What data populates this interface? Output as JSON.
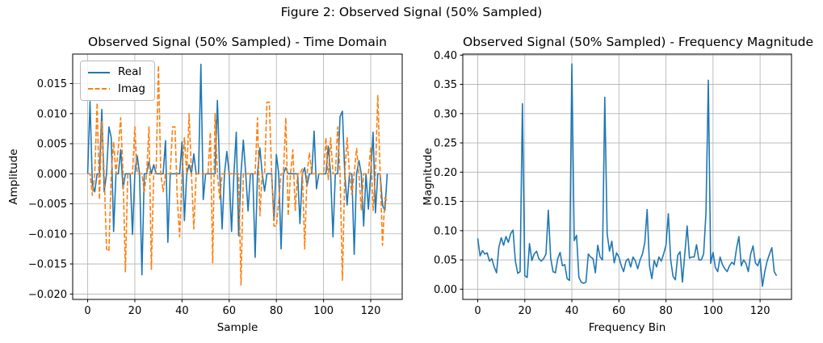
{
  "figure": {
    "suptitle": "Figure 2: Observed Signal (50% Sampled)",
    "background": "#ffffff"
  },
  "colors": {
    "real": "#1f77b4",
    "imag": "#ff7f0e",
    "magnitude": "#1f77b4",
    "grid": "#b0b0b0",
    "axes": "#000000",
    "legend_border": "#b9b9b9"
  },
  "chart_data": [
    {
      "type": "line",
      "title": "Observed Signal (50% Sampled) - Time Domain",
      "xlabel": "Sample",
      "ylabel": "Amplitude",
      "grid": true,
      "x_is_index": true,
      "n_points": 128,
      "xlim": [
        -6.35,
        133.35
      ],
      "ylim": [
        -0.0209,
        0.0199
      ],
      "xticks": [
        0,
        20,
        40,
        60,
        80,
        100,
        120
      ],
      "xtick_labels": [
        "0",
        "20",
        "40",
        "60",
        "80",
        "100",
        "120"
      ],
      "yticks": [
        -0.02,
        -0.015,
        -0.01,
        -0.005,
        0.0,
        0.005,
        0.01,
        0.015
      ],
      "ytick_labels": [
        "−0.020",
        "−0.015",
        "−0.010",
        "−0.005",
        "0.000",
        "0.005",
        "0.010",
        "0.015"
      ],
      "legend": {
        "position": "upper left",
        "entries": [
          {
            "label": "Real",
            "color": "#1f77b4",
            "style": "solid"
          },
          {
            "label": "Imag",
            "color": "#ff7f0e",
            "style": "dashed"
          }
        ]
      },
      "series": [
        {
          "name": "Real",
          "color": "#1f77b4",
          "style": "solid",
          "values": [
            0,
            0.012,
            -0.0018,
            -0.003,
            0,
            0,
            0.0107,
            -0.003,
            0,
            0.0078,
            0.006,
            -0.0096,
            0,
            0,
            0.004,
            -0.0025,
            0,
            0,
            0,
            -0.0101,
            0,
            0.003,
            0,
            -0.0168,
            0,
            0,
            0.002,
            0,
            0.0015,
            0,
            0,
            0,
            0,
            0.0055,
            -0.0114,
            0,
            0,
            0,
            0,
            0,
            0.0053,
            -0.0078,
            0,
            0.0015,
            0,
            0.0033,
            0,
            0,
            0.0182,
            -0.0043,
            0,
            0,
            0,
            0,
            0,
            0.0122,
            0,
            -0.0092,
            0,
            0.0037,
            0,
            -0.0096,
            0,
            0.0069,
            -0.0103,
            0,
            0.0056,
            0,
            -0.0062,
            0,
            0,
            -0.0139,
            0,
            0.0043,
            0,
            -0.0029,
            0,
            0,
            0,
            -0.0078,
            0.0032,
            0,
            -0.0125,
            0,
            0.001,
            0,
            0,
            0,
            0,
            0,
            -0.0083,
            0,
            0.001,
            -0.002,
            0,
            0,
            0.0071,
            -0.0025,
            0,
            0,
            0,
            0,
            0.0046,
            0,
            -0.0105,
            0,
            0,
            0.0095,
            0.0104,
            0,
            -0.0052,
            0,
            0,
            -0.0134,
            0,
            0.0022,
            0,
            -0.0087,
            0,
            -0.0059,
            0,
            0.0069,
            -0.0065,
            0,
            0,
            -0.0053,
            -0.0061,
            0
          ]
        },
        {
          "name": "Imag",
          "color": "#ff7f0e",
          "style": "dashed",
          "values": [
            0,
            0,
            -0.0036,
            0,
            0.0118,
            -0.0043,
            0.0087,
            0,
            -0.0125,
            -0.0129,
            0,
            0.0053,
            0,
            0.0044,
            0.0093,
            0,
            -0.0163,
            0,
            0,
            0,
            0.0078,
            0,
            0,
            0,
            -0.003,
            0,
            0.0078,
            -0.0159,
            0,
            0,
            0.018,
            0,
            -0.003,
            0,
            0,
            0,
            0.0078,
            0.0078,
            -0.0041,
            -0.0105,
            0,
            0.006,
            0,
            0.01,
            0,
            -0.0092,
            0,
            0,
            0,
            0,
            0,
            0,
            0.0069,
            -0.0148,
            0.01,
            0,
            -0.0042,
            0,
            0,
            0,
            0,
            0,
            0,
            0,
            0,
            -0.0185,
            0,
            0,
            0,
            0,
            0,
            0,
            0.0093,
            -0.007,
            0,
            0,
            0.0119,
            0.0119,
            0,
            -0.0087,
            -0.0087,
            -0.0045,
            0,
            0,
            0.0093,
            -0.007,
            0,
            0.004,
            -0.0061,
            0,
            0,
            0.0008,
            -0.0125,
            0,
            0.0035,
            0,
            0,
            0,
            0,
            0,
            0,
            0.006,
            -0.001,
            0.006,
            0,
            0,
            0.0078,
            0,
            -0.0177,
            0,
            0.006,
            0,
            -0.0035,
            0,
            0.0042,
            0,
            -0.0061,
            0,
            0,
            0,
            0.0045,
            -0.0061,
            0,
            0.0131,
            0,
            -0.0119,
            -0.004,
            -0.0045
          ]
        }
      ]
    },
    {
      "type": "line",
      "title": "Observed Signal (50% Sampled) - Frequency Magnitude",
      "xlabel": "Frequency Bin",
      "ylabel": "Magnitude",
      "grid": true,
      "x_is_index": true,
      "n_points": 128,
      "xlim": [
        -6.35,
        133.35
      ],
      "ylim": [
        -0.0175,
        0.4018
      ],
      "xticks": [
        0,
        20,
        40,
        60,
        80,
        100,
        120
      ],
      "xtick_labels": [
        "0",
        "20",
        "40",
        "60",
        "80",
        "100",
        "120"
      ],
      "yticks": [
        0.0,
        0.05,
        0.1,
        0.15,
        0.2,
        0.25,
        0.3,
        0.35,
        0.4
      ],
      "ytick_labels": [
        "0.00",
        "0.05",
        "0.10",
        "0.15",
        "0.20",
        "0.25",
        "0.30",
        "0.35",
        "0.40"
      ],
      "series": [
        {
          "name": "Magnitude",
          "color": "#1f77b4",
          "style": "solid",
          "values": [
            0.087,
            0.057,
            0.066,
            0.06,
            0.062,
            0.048,
            0.052,
            0.038,
            0.028,
            0.072,
            0.088,
            0.075,
            0.09,
            0.08,
            0.095,
            0.101,
            0.048,
            0.027,
            0.03,
            0.317,
            0.023,
            0.02,
            0.078,
            0.049,
            0.06,
            0.065,
            0.052,
            0.048,
            0.052,
            0.06,
            0.135,
            0.053,
            0.03,
            0.028,
            0.052,
            0.063,
            0.04,
            0.042,
            0.018,
            0.015,
            0.385,
            0.083,
            0.092,
            0.02,
            0.012,
            0.01,
            0.012,
            0.06,
            0.055,
            0.052,
            0.028,
            0.075,
            0.055,
            0.05,
            0.328,
            0.095,
            0.065,
            0.082,
            0.045,
            0.062,
            0.055,
            0.04,
            0.03,
            0.048,
            0.052,
            0.038,
            0.055,
            0.048,
            0.035,
            0.05,
            0.06,
            0.08,
            0.136,
            0.04,
            0.018,
            0.049,
            0.038,
            0.055,
            0.048,
            0.06,
            0.075,
            0.129,
            0.05,
            0.022,
            0.016,
            0.058,
            0.064,
            0.012,
            0.06,
            0.108,
            0.053,
            0.055,
            0.055,
            0.076,
            0.05,
            0.05,
            0.06,
            0.13,
            0.357,
            0.044,
            0.063,
            0.037,
            0.03,
            0.055,
            0.042,
            0.035,
            0.03,
            0.04,
            0.046,
            0.042,
            0.07,
            0.09,
            0.04,
            0.05,
            0.044,
            0.03,
            0.06,
            0.074,
            0.045,
            0.04,
            0.052,
            0.005,
            0.03,
            0.048,
            0.06,
            0.071,
            0.03,
            0.023
          ]
        }
      ]
    }
  ]
}
